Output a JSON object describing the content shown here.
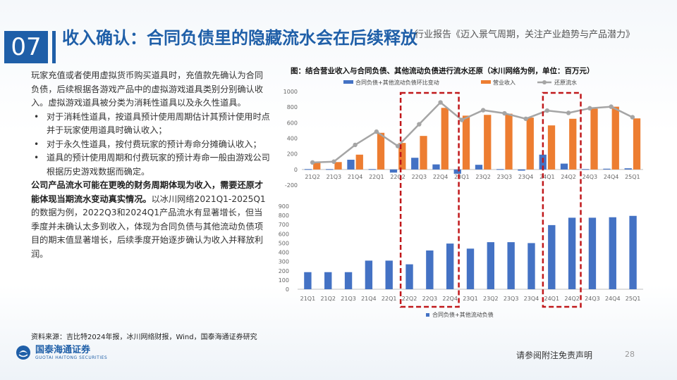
{
  "header": {
    "section_number": "07",
    "title": "收入确认：合同负债里的隐藏流水会在后续释放",
    "report_name": "行业报告《迈入景气周期，关注产业趋势与产品潜力》"
  },
  "body": {
    "intro": "玩家充值或者使用虚拟货币购买道具时，充值款先确认为合同负债，后续根据各游戏产品中的虚拟游戏道具类别分别确认收入。虚拟游戏道具被分类为消耗性道具以及永久性道具。",
    "bullets": [
      "对于消耗性道具，按道具预计使用周期估计其预计使用时点并于玩家使用道具时确认收入；",
      "对于永久性道具，按付费玩家的预计寿命分摊确认收入；",
      "道具的预计使用周期和付费玩家的预计寿命一般由游戏公司根据历史游戏数据而确定。"
    ],
    "emphasis": "公司产品流水可能在更晚的财务周期体现为收入，需要还原才能体现当期流水变动真实情况。",
    "example": "以冰川网络2021Q1-2025Q1的数据为例，2022Q3和2024Q1产品流水有显著增长，但当季度并未确认太多到收入，体现为合同负债与其他流动负债项目的期末值显著增长，后续季度开始逐步确认为收入并释放利润。"
  },
  "source": "资料来源：吉比特2024年报，冰川网络财报，Wind，国泰海通证券研究",
  "brand": {
    "name_cn": "国泰海通证券",
    "name_en": "GUOTAI HAITONG SECURITIES"
  },
  "footer": {
    "disclaimer": "请参阅附注免责声明",
    "page": "28"
  },
  "colors": {
    "brand_blue": "#1f5fa8",
    "bar_blue": "#4472c4",
    "bar_orange": "#ed7d31",
    "line_gray": "#a5a5a5",
    "highlight_red": "#c0181b"
  },
  "chart_data": [
    {
      "type": "bar+line",
      "title": "图：结合营业收入与合同负债、其他流动负债进行流水还原（冰川网络为例，单位：百万元）",
      "categories": [
        "21Q2",
        "21Q3",
        "21Q4",
        "22Q1",
        "22Q2",
        "22Q3",
        "22Q4",
        "23Q1",
        "23Q2",
        "23Q3",
        "23Q4",
        "24Q1",
        "24Q2",
        "24Q3",
        "24Q4",
        "25Q1"
      ],
      "ylim": [
        -200,
        1000
      ],
      "yticks": [
        "1000",
        "800",
        "600",
        "400",
        "200",
        "0",
        "-200"
      ],
      "series": [
        {
          "name": "合同负债+其他流动负债环比变动",
          "kind": "bar",
          "values": [
            5,
            5,
            125,
            5,
            -40,
            150,
            65,
            -55,
            60,
            5,
            -15,
            190,
            75,
            5,
            10,
            15
          ]
        },
        {
          "name": "营业收入",
          "kind": "bar",
          "values": [
            85,
            95,
            190,
            470,
            340,
            430,
            790,
            690,
            700,
            715,
            665,
            565,
            650,
            780,
            805,
            655
          ]
        },
        {
          "name": "还原流水",
          "kind": "line",
          "values": [
            90,
            100,
            315,
            485,
            300,
            580,
            860,
            635,
            760,
            720,
            650,
            755,
            725,
            785,
            805,
            670
          ]
        }
      ],
      "highlight_ranges": [
        [
          "22Q3",
          "22Q4"
        ],
        [
          "24Q1",
          "24Q2"
        ]
      ]
    },
    {
      "type": "bar",
      "categories": [
        "21Q1",
        "21Q2",
        "21Q3",
        "21Q4",
        "22Q1",
        "22Q2",
        "22Q3",
        "22Q4",
        "23Q1",
        "23Q2",
        "23Q3",
        "23Q4",
        "24Q1",
        "24Q2",
        "24Q3",
        "24Q4",
        "25Q1"
      ],
      "ylim": [
        0,
        900
      ],
      "yticks": [
        "900",
        "800",
        "700",
        "600",
        "500",
        "400",
        "300",
        "200",
        "100",
        "0"
      ],
      "series": [
        {
          "name": "合同负债+其他流动负债",
          "values": [
            185,
            185,
            185,
            310,
            310,
            270,
            420,
            495,
            440,
            510,
            510,
            500,
            695,
            775,
            775,
            780,
            795
          ]
        }
      ],
      "highlight_ranges": [
        [
          "22Q2",
          "22Q4"
        ],
        [
          "24Q1",
          "24Q2"
        ]
      ]
    }
  ]
}
